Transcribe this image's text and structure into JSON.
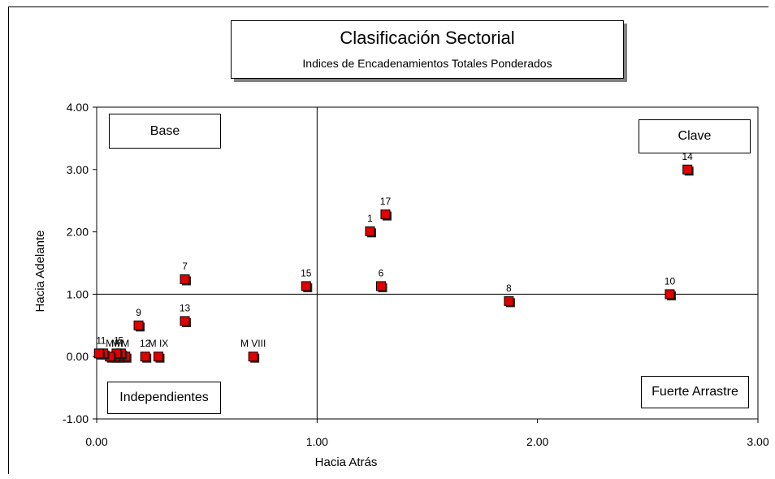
{
  "chart_data": {
    "type": "scatter",
    "title": "Clasificación Sectorial",
    "subtitle": "Indices de Encadenamientos Totales Ponderados",
    "xlabel": "Hacia Atrás",
    "ylabel": "Hacia Adelante",
    "xlim": [
      0,
      3
    ],
    "ylim": [
      -1,
      4
    ],
    "x_ticks": [
      "0.00",
      "1.00",
      "2.00",
      "3.00"
    ],
    "y_ticks": [
      "-1.00",
      "0.00",
      "1.00",
      "2.00",
      "3.00",
      "4.00"
    ],
    "reference_lines": {
      "x": 1.0,
      "y": 1.0
    },
    "quadrants": {
      "base": "Base",
      "clave": "Clave",
      "independientes": "Independientes",
      "fuerte_arrastre": "Fuerte Arrastre"
    },
    "marker_color": "#e00000",
    "points": [
      {
        "label": "1",
        "x": 1.24,
        "y": 2.01
      },
      {
        "label": "17",
        "x": 1.31,
        "y": 2.28
      },
      {
        "label": "14",
        "x": 2.68,
        "y": 3.0
      },
      {
        "label": "6",
        "x": 1.29,
        "y": 1.13
      },
      {
        "label": "15",
        "x": 0.95,
        "y": 1.13
      },
      {
        "label": "7",
        "x": 0.4,
        "y": 1.24
      },
      {
        "label": "10",
        "x": 2.6,
        "y": 1.0
      },
      {
        "label": "8",
        "x": 1.87,
        "y": 0.89
      },
      {
        "label": "13",
        "x": 0.4,
        "y": 0.57
      },
      {
        "label": "9",
        "x": 0.19,
        "y": 0.5
      },
      {
        "label": "M VIII",
        "x": 0.71,
        "y": 0.0
      },
      {
        "label": "M IX",
        "x": 0.28,
        "y": 0.0
      },
      {
        "label": "12",
        "x": 0.22,
        "y": 0.0
      },
      {
        "label": "M",
        "x": 0.13,
        "y": 0.0
      },
      {
        "label": "M",
        "x": 0.1,
        "y": 0.0
      },
      {
        "label": "5",
        "x": 0.11,
        "y": 0.05
      },
      {
        "label": "M",
        "x": 0.085,
        "y": 0.0
      },
      {
        "label": "1",
        "x": 0.09,
        "y": 0.05
      },
      {
        "label": "M",
        "x": 0.06,
        "y": 0.0
      },
      {
        "label": "1",
        "x": 0.03,
        "y": 0.05
      },
      {
        "label": "1",
        "x": 0.01,
        "y": 0.05
      }
    ]
  }
}
